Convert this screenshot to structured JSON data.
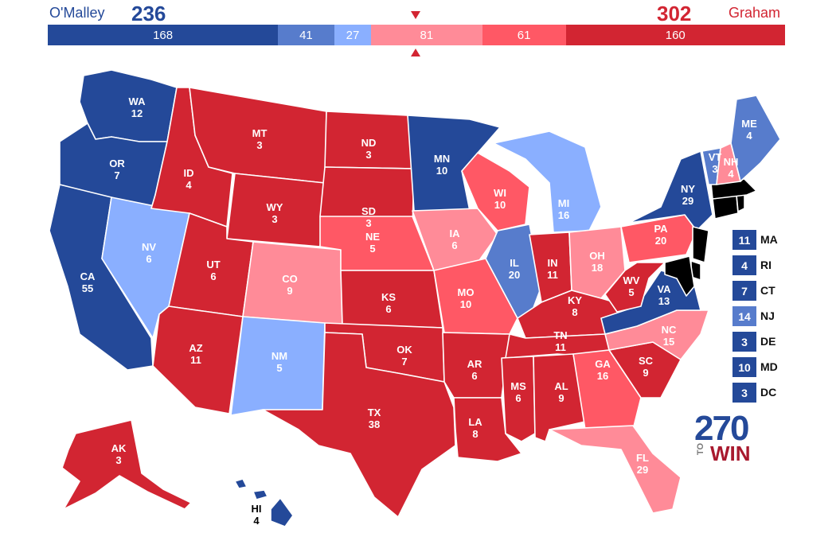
{
  "header": {
    "left_candidate": "O'Malley",
    "left_total": "236",
    "right_candidate": "Graham",
    "right_total": "302"
  },
  "bar_segments": [
    {
      "id": "safe-dem",
      "label": "168",
      "value": 168,
      "color": "#244999"
    },
    {
      "id": "likely-dem",
      "label": "41",
      "value": 41,
      "color": "#577ccc"
    },
    {
      "id": "lean-dem",
      "label": "27",
      "value": 27,
      "color": "#8aafff"
    },
    {
      "id": "lean-rep",
      "label": "81",
      "value": 81,
      "color": "#ff8b98"
    },
    {
      "id": "likely-rep",
      "label": "61",
      "value": 61,
      "color": "#ff5865"
    },
    {
      "id": "safe-rep",
      "label": "160",
      "value": 160,
      "color": "#d22532"
    }
  ],
  "colors": {
    "safe_dem": "#244999",
    "likely_dem": "#577ccc",
    "lean_dem": "#8aafff",
    "lean_rep": "#ff8b98",
    "likely_rep": "#ff5865",
    "safe_rep": "#d22532"
  },
  "states": {
    "WA": {
      "name": "WA",
      "ev": "12",
      "rating": "safe_dem"
    },
    "OR": {
      "name": "OR",
      "ev": "7",
      "rating": "safe_dem"
    },
    "CA": {
      "name": "CA",
      "ev": "55",
      "rating": "safe_dem"
    },
    "NV": {
      "name": "NV",
      "ev": "6",
      "rating": "lean_dem"
    },
    "ID": {
      "name": "ID",
      "ev": "4",
      "rating": "safe_rep"
    },
    "MT": {
      "name": "MT",
      "ev": "3",
      "rating": "safe_rep"
    },
    "WY": {
      "name": "WY",
      "ev": "3",
      "rating": "safe_rep"
    },
    "UT": {
      "name": "UT",
      "ev": "6",
      "rating": "safe_rep"
    },
    "AZ": {
      "name": "AZ",
      "ev": "11",
      "rating": "safe_rep"
    },
    "CO": {
      "name": "CO",
      "ev": "9",
      "rating": "lean_rep"
    },
    "NM": {
      "name": "NM",
      "ev": "5",
      "rating": "lean_dem"
    },
    "ND": {
      "name": "ND",
      "ev": "3",
      "rating": "safe_rep"
    },
    "SD": {
      "name": "SD",
      "ev": "3",
      "rating": "safe_rep"
    },
    "NE": {
      "name": "NE",
      "ev": "5",
      "rating": "likely_rep"
    },
    "KS": {
      "name": "KS",
      "ev": "6",
      "rating": "safe_rep"
    },
    "OK": {
      "name": "OK",
      "ev": "7",
      "rating": "safe_rep"
    },
    "TX": {
      "name": "TX",
      "ev": "38",
      "rating": "safe_rep"
    },
    "MN": {
      "name": "MN",
      "ev": "10",
      "rating": "safe_dem"
    },
    "IA": {
      "name": "IA",
      "ev": "6",
      "rating": "lean_rep"
    },
    "MO": {
      "name": "MO",
      "ev": "10",
      "rating": "likely_rep"
    },
    "AR": {
      "name": "AR",
      "ev": "6",
      "rating": "safe_rep"
    },
    "LA": {
      "name": "LA",
      "ev": "8",
      "rating": "safe_rep"
    },
    "WI": {
      "name": "WI",
      "ev": "10",
      "rating": "likely_rep"
    },
    "IL": {
      "name": "IL",
      "ev": "20",
      "rating": "likely_dem"
    },
    "MI": {
      "name": "MI",
      "ev": "16",
      "rating": "lean_dem"
    },
    "IN": {
      "name": "IN",
      "ev": "11",
      "rating": "safe_rep"
    },
    "OH": {
      "name": "OH",
      "ev": "18",
      "rating": "lean_rep"
    },
    "KY": {
      "name": "KY",
      "ev": "8",
      "rating": "safe_rep"
    },
    "TN": {
      "name": "TN",
      "ev": "11",
      "rating": "safe_rep"
    },
    "MS": {
      "name": "MS",
      "ev": "6",
      "rating": "safe_rep"
    },
    "AL": {
      "name": "AL",
      "ev": "9",
      "rating": "safe_rep"
    },
    "GA": {
      "name": "GA",
      "ev": "16",
      "rating": "likely_rep"
    },
    "FL": {
      "name": "FL",
      "ev": "29",
      "rating": "lean_rep"
    },
    "SC": {
      "name": "SC",
      "ev": "9",
      "rating": "safe_rep"
    },
    "NC": {
      "name": "NC",
      "ev": "15",
      "rating": "lean_rep"
    },
    "VA": {
      "name": "VA",
      "ev": "13",
      "rating": "safe_dem"
    },
    "WV": {
      "name": "WV",
      "ev": "5",
      "rating": "safe_rep"
    },
    "PA": {
      "name": "PA",
      "ev": "20",
      "rating": "likely_rep"
    },
    "NY": {
      "name": "NY",
      "ev": "29",
      "rating": "safe_dem"
    },
    "VT": {
      "name": "VT",
      "ev": "3",
      "rating": "likely_dem"
    },
    "NH": {
      "name": "NH",
      "ev": "4",
      "rating": "lean_rep"
    },
    "ME": {
      "name": "ME",
      "ev": "4",
      "rating": "likely_dem"
    },
    "AK": {
      "name": "AK",
      "ev": "3",
      "rating": "safe_rep"
    },
    "HI": {
      "name": "HI",
      "ev": "4",
      "rating": "safe_dem"
    }
  },
  "small_states": [
    {
      "id": "MA",
      "ev": "11",
      "rating": "safe_dem"
    },
    {
      "id": "RI",
      "ev": "4",
      "rating": "safe_dem"
    },
    {
      "id": "CT",
      "ev": "7",
      "rating": "safe_dem"
    },
    {
      "id": "NJ",
      "ev": "14",
      "rating": "likely_dem"
    },
    {
      "id": "DE",
      "ev": "3",
      "rating": "safe_dem"
    },
    {
      "id": "MD",
      "ev": "10",
      "rating": "safe_dem"
    },
    {
      "id": "DC",
      "ev": "3",
      "rating": "safe_dem"
    }
  ],
  "logo": {
    "number": "270",
    "to": "TO",
    "win": "WIN"
  }
}
